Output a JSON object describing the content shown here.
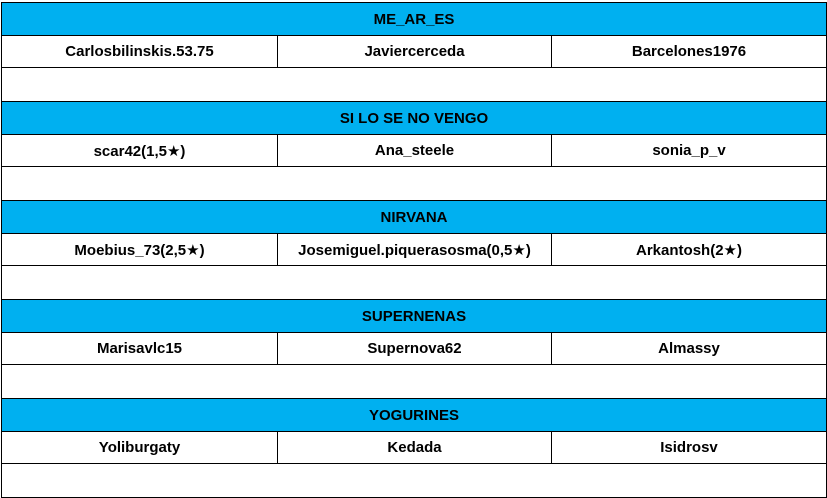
{
  "accent_color": "#00B0F0",
  "groups": [
    {
      "title": "ME_AR_ES",
      "members": [
        "Carlosbilinskis.53.75",
        "Javiercerceda",
        "Barcelones1976"
      ]
    },
    {
      "title": "SI LO SE NO VENGO",
      "members": [
        "scar42(1,5★)",
        "Ana_steele",
        "sonia_p_v"
      ]
    },
    {
      "title": "NIRVANA",
      "members": [
        "Moebius_73(2,5★)",
        "Josemiguel.piquerasosma(0,5★)",
        "Arkantosh(2★)"
      ]
    },
    {
      "title": "SUPERNENAS",
      "members": [
        "Marisavlc15",
        "Supernova62",
        "Almassy"
      ]
    },
    {
      "title": "YOGURINES",
      "members": [
        "Yoliburgaty",
        "Kedada",
        "Isidrosv"
      ]
    }
  ]
}
